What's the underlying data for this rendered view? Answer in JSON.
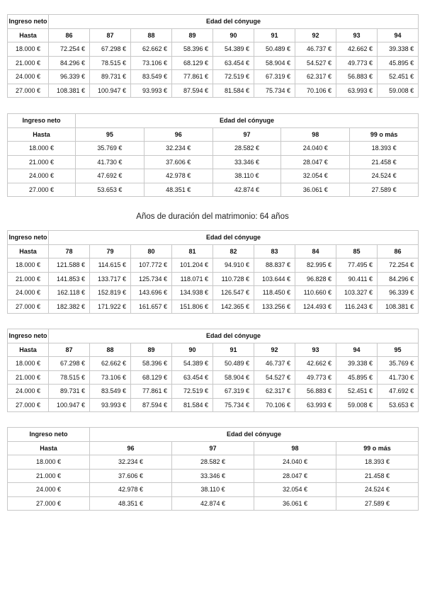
{
  "section_title": "Años de duración del matrimonio: 64 años",
  "tables": [
    {
      "row_header": "Ingreso neto",
      "group_header": "Edad del cónyuge",
      "sub_header": "Hasta",
      "columns": [
        "86",
        "87",
        "88",
        "89",
        "90",
        "91",
        "92",
        "93",
        "94"
      ],
      "rows": [
        {
          "income": "18.000 €",
          "values": [
            "72.254 €",
            "67.298 €",
            "62.662 €",
            "58.396 €",
            "54.389 €",
            "50.489 €",
            "46.737 €",
            "42.662 €",
            "39.338 €"
          ]
        },
        {
          "income": "21.000 €",
          "values": [
            "84.296 €",
            "78.515 €",
            "73.106 €",
            "68.129 €",
            "63.454 €",
            "58.904 €",
            "54.527 €",
            "49.773 €",
            "45.895 €"
          ]
        },
        {
          "income": "24.000 €",
          "values": [
            "96.339 €",
            "89.731 €",
            "83.549 €",
            "77.861 €",
            "72.519 €",
            "67.319 €",
            "62.317 €",
            "56.883 €",
            "52.451 €"
          ]
        },
        {
          "income": "27.000 €",
          "values": [
            "108.381 €",
            "100.947 €",
            "93.993 €",
            "87.594 €",
            "81.584 €",
            "75.734 €",
            "70.106 €",
            "63.993 €",
            "59.008 €"
          ]
        }
      ]
    },
    {
      "row_header": "Ingreso neto",
      "group_header": "Edad del cónyuge",
      "sub_header": "Hasta",
      "columns": [
        "95",
        "96",
        "97",
        "98",
        "99 o más"
      ],
      "rows": [
        {
          "income": "18.000 €",
          "values": [
            "35.769 €",
            "32.234 €",
            "28.582 €",
            "24.040 €",
            "18.393 €"
          ]
        },
        {
          "income": "21.000 €",
          "values": [
            "41.730 €",
            "37.606 €",
            "33.346 €",
            "28.047 €",
            "21.458 €"
          ]
        },
        {
          "income": "24.000 €",
          "values": [
            "47.692 €",
            "42.978 €",
            "38.110 €",
            "32.054 €",
            "24.524 €"
          ]
        },
        {
          "income": "27.000 €",
          "values": [
            "53.653 €",
            "48.351 €",
            "42.874 €",
            "36.061 €",
            "27.589 €"
          ]
        }
      ]
    },
    {
      "row_header": "Ingreso neto",
      "group_header": "Edad del cónyuge",
      "sub_header": "Hasta",
      "columns": [
        "78",
        "79",
        "80",
        "81",
        "82",
        "83",
        "84",
        "85",
        "86"
      ],
      "rows": [
        {
          "income": "18.000 €",
          "values": [
            "121.588 €",
            "114.615 €",
            "107.772 €",
            "101.204 €",
            "94.910 €",
            "88.837 €",
            "82.995 €",
            "77.495 €",
            "72.254 €"
          ]
        },
        {
          "income": "21.000 €",
          "values": [
            "141.853 €",
            "133.717 €",
            "125.734 €",
            "118.071 €",
            "110.728 €",
            "103.644 €",
            "96.828 €",
            "90.411 €",
            "84.296 €"
          ]
        },
        {
          "income": "24.000 €",
          "values": [
            "162.118 €",
            "152.819 €",
            "143.696 €",
            "134.938 €",
            "126.547 €",
            "118.450 €",
            "110.660 €",
            "103.327 €",
            "96.339 €"
          ]
        },
        {
          "income": "27.000 €",
          "values": [
            "182.382 €",
            "171.922 €",
            "161.657 €",
            "151.806 €",
            "142.365 €",
            "133.256 €",
            "124.493 €",
            "116.243 €",
            "108.381 €"
          ]
        }
      ]
    },
    {
      "row_header": "Ingreso neto",
      "group_header": "Edad del cónyuge",
      "sub_header": "Hasta",
      "columns": [
        "87",
        "88",
        "89",
        "90",
        "91",
        "92",
        "93",
        "94",
        "95"
      ],
      "rows": [
        {
          "income": "18.000 €",
          "values": [
            "67.298 €",
            "62.662 €",
            "58.396 €",
            "54.389 €",
            "50.489 €",
            "46.737 €",
            "42.662 €",
            "39.338 €",
            "35.769 €"
          ]
        },
        {
          "income": "21.000 €",
          "values": [
            "78.515 €",
            "73.106 €",
            "68.129 €",
            "63.454 €",
            "58.904 €",
            "54.527 €",
            "49.773 €",
            "45.895 €",
            "41.730 €"
          ]
        },
        {
          "income": "24.000 €",
          "values": [
            "89.731 €",
            "83.549 €",
            "77.861 €",
            "72.519 €",
            "67.319 €",
            "62.317 €",
            "56.883 €",
            "52.451 €",
            "47.692 €"
          ]
        },
        {
          "income": "27.000 €",
          "values": [
            "100.947 €",
            "93.993 €",
            "87.594 €",
            "81.584 €",
            "75.734 €",
            "70.106 €",
            "63.993 €",
            "59.008 €",
            "53.653 €"
          ]
        }
      ]
    },
    {
      "row_header": "Ingreso neto",
      "group_header": "Edad del cónyuge",
      "sub_header": "Hasta",
      "columns": [
        "96",
        "97",
        "98",
        "99 o más"
      ],
      "rows": [
        {
          "income": "18.000 €",
          "values": [
            "32.234 €",
            "28.582 €",
            "24.040 €",
            "18.393 €"
          ]
        },
        {
          "income": "21.000 €",
          "values": [
            "37.606 €",
            "33.346 €",
            "28.047 €",
            "21.458 €"
          ]
        },
        {
          "income": "24.000 €",
          "values": [
            "42.978 €",
            "38.110 €",
            "32.054 €",
            "24.524 €"
          ]
        },
        {
          "income": "27.000 €",
          "values": [
            "48.351 €",
            "42.874 €",
            "36.061 €",
            "27.589 €"
          ]
        }
      ]
    }
  ]
}
